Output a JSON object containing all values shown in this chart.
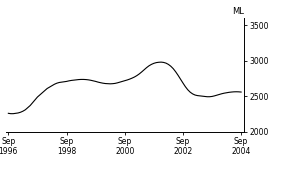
{
  "title": "",
  "ylabel": "ML",
  "ylim": [
    2000,
    3600
  ],
  "yticks": [
    2000,
    2500,
    3000,
    3500
  ],
  "x_tick_labels": [
    "Sep\n1996",
    "Sep\n1998",
    "Sep\n2000",
    "Sep\n2002",
    "Sep\n2004"
  ],
  "x_tick_positions": [
    0,
    24,
    48,
    72,
    96
  ],
  "line_color": "#000000",
  "background_color": "#ffffff",
  "data_x": [
    0,
    1,
    2,
    3,
    4,
    5,
    6,
    7,
    8,
    9,
    10,
    11,
    12,
    13,
    14,
    15,
    16,
    17,
    18,
    19,
    20,
    21,
    22,
    23,
    24,
    25,
    26,
    27,
    28,
    29,
    30,
    31,
    32,
    33,
    34,
    35,
    36,
    37,
    38,
    39,
    40,
    41,
    42,
    43,
    44,
    45,
    46,
    47,
    48,
    49,
    50,
    51,
    52,
    53,
    54,
    55,
    56,
    57,
    58,
    59,
    60,
    61,
    62,
    63,
    64,
    65,
    66,
    67,
    68,
    69,
    70,
    71,
    72,
    73,
    74,
    75,
    76,
    77,
    78,
    79,
    80,
    81,
    82,
    83,
    84,
    85,
    86,
    87,
    88,
    89,
    90,
    91,
    92,
    93,
    94,
    95,
    96
  ],
  "data_y": [
    2260,
    2255,
    2255,
    2260,
    2265,
    2275,
    2290,
    2310,
    2340,
    2370,
    2410,
    2450,
    2490,
    2520,
    2550,
    2580,
    2610,
    2630,
    2650,
    2670,
    2685,
    2695,
    2700,
    2705,
    2710,
    2718,
    2724,
    2728,
    2732,
    2736,
    2738,
    2738,
    2736,
    2732,
    2726,
    2718,
    2710,
    2700,
    2692,
    2685,
    2680,
    2678,
    2676,
    2678,
    2682,
    2690,
    2700,
    2710,
    2720,
    2730,
    2742,
    2756,
    2772,
    2792,
    2816,
    2844,
    2874,
    2904,
    2930,
    2950,
    2965,
    2975,
    2980,
    2982,
    2978,
    2968,
    2950,
    2924,
    2890,
    2846,
    2796,
    2742,
    2688,
    2636,
    2592,
    2558,
    2534,
    2518,
    2510,
    2506,
    2502,
    2498,
    2494,
    2494,
    2498,
    2506,
    2516,
    2526,
    2536,
    2544,
    2550,
    2556,
    2560,
    2563,
    2564,
    2563,
    2560
  ],
  "xlim": [
    -1,
    97
  ]
}
